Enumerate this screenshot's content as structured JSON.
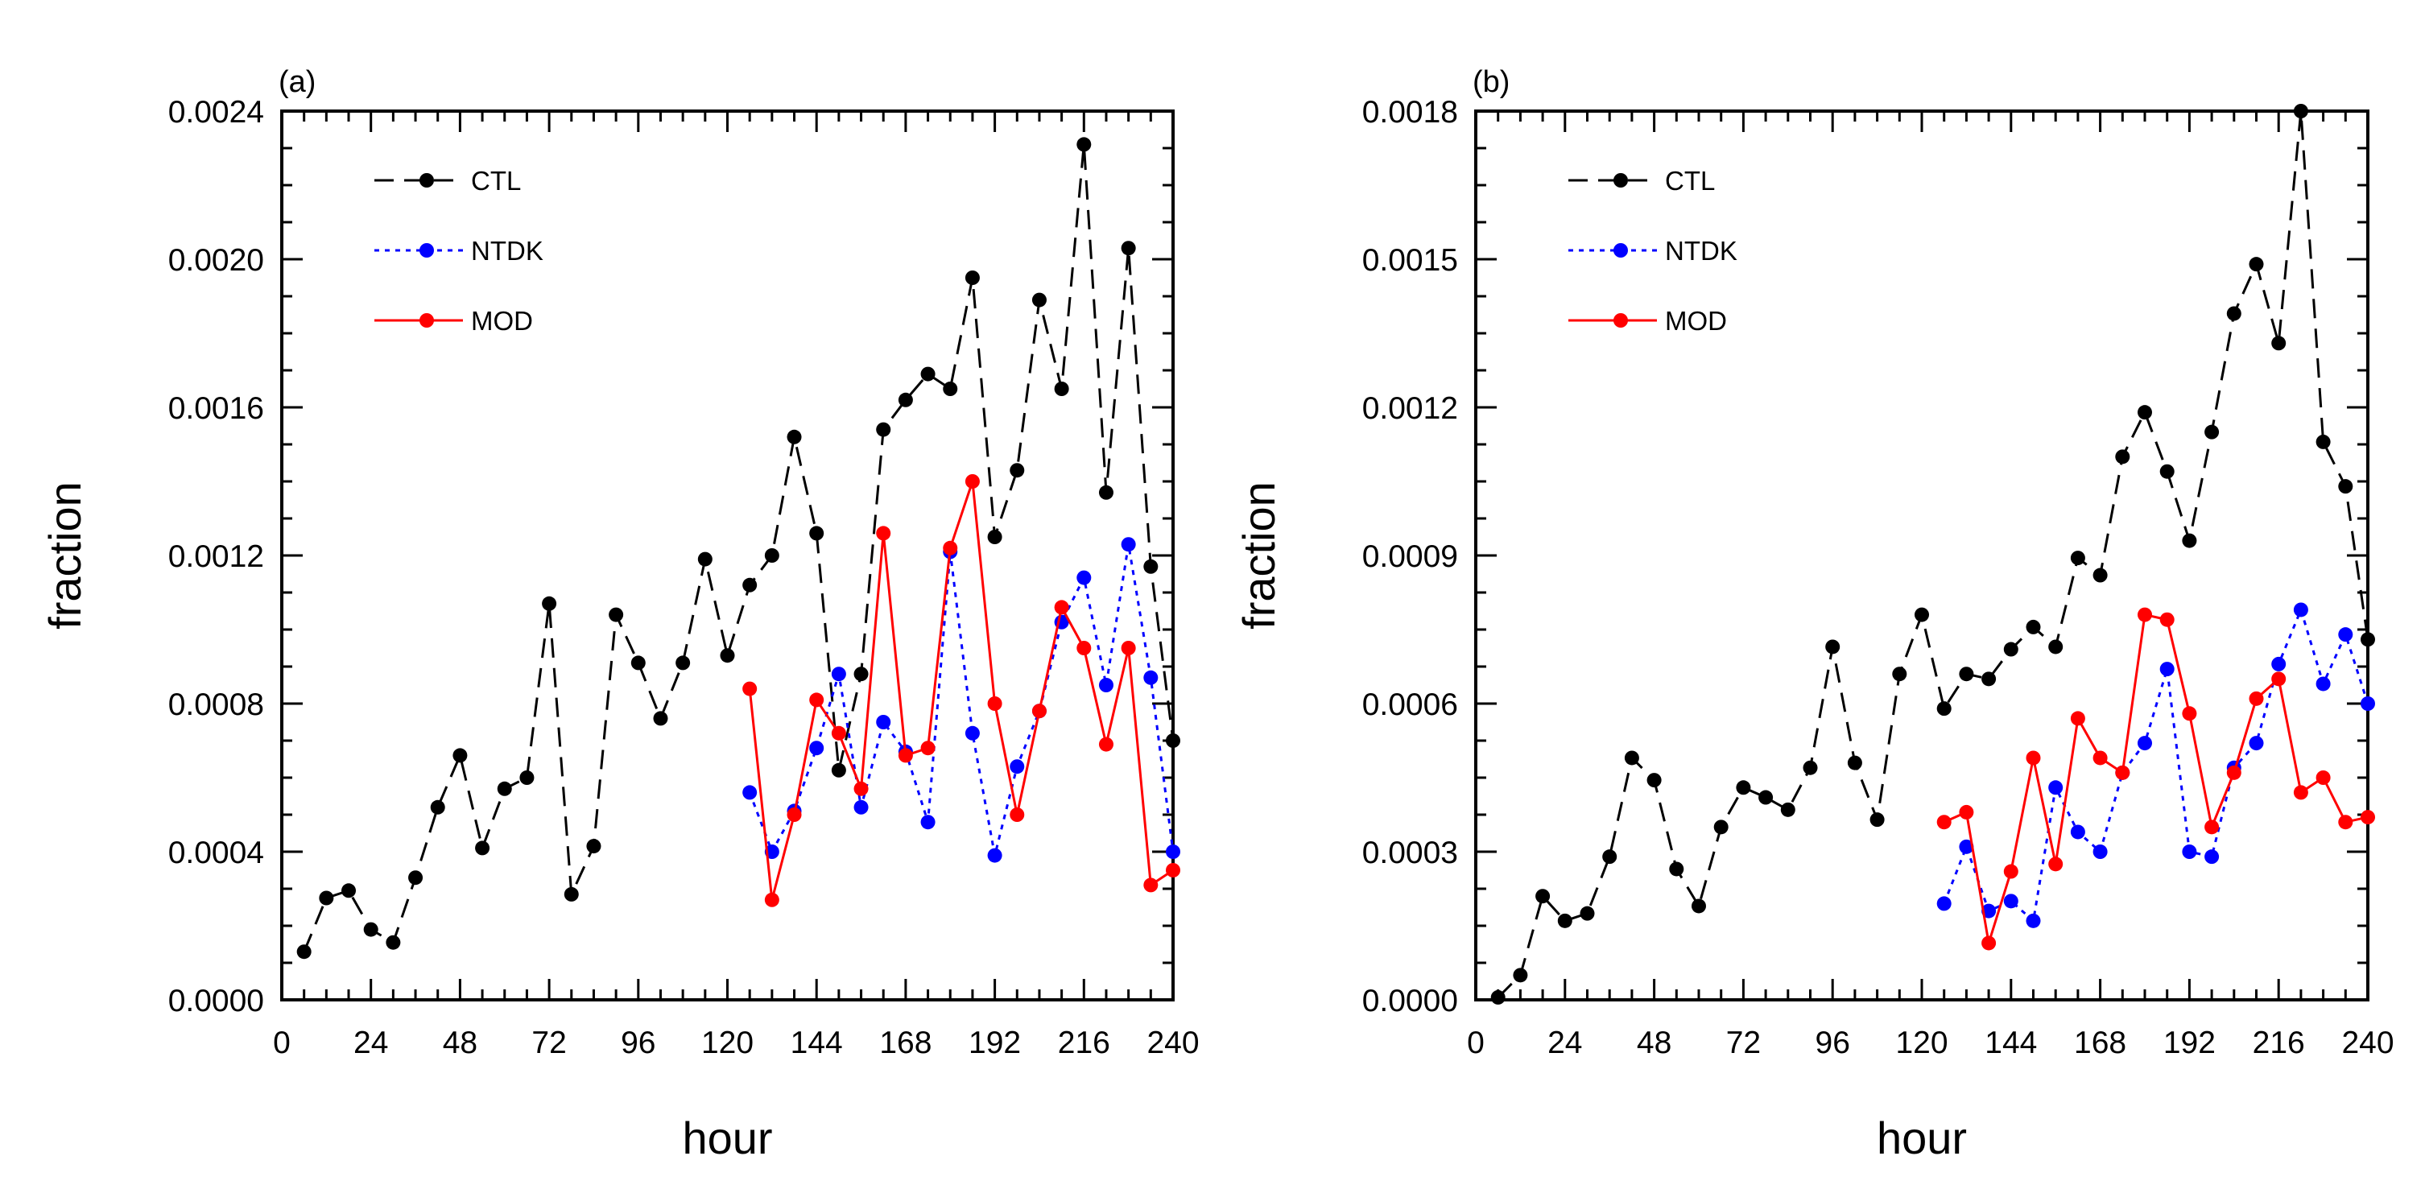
{
  "chart_data": [
    {
      "type": "line",
      "panel_label": "(a)",
      "xlabel": "hour",
      "ylabel": "fraction",
      "xlim": [
        0,
        240
      ],
      "ylim": [
        0,
        0.0024
      ],
      "xticks": [
        0,
        24,
        48,
        72,
        96,
        120,
        144,
        168,
        192,
        216,
        240
      ],
      "xtick_labels": [
        "0",
        "24",
        "48",
        "72",
        "96",
        "120",
        "144",
        "168",
        "192",
        "216",
        "240"
      ],
      "yticks": [
        0,
        0.0004,
        0.0008,
        0.0012,
        0.0016,
        0.002,
        0.0024
      ],
      "ytick_labels": [
        "0.0000",
        "0.0004",
        "0.0008",
        "0.0012",
        "0.0016",
        "0.0020",
        "0.0024"
      ],
      "legend_position": "top-left",
      "series": [
        {
          "name": "CTL",
          "color": "#000000",
          "dash": "dashed",
          "x": [
            6,
            12,
            18,
            24,
            30,
            36,
            42,
            48,
            54,
            60,
            66,
            72,
            78,
            84,
            90,
            96,
            102,
            108,
            114,
            120,
            126,
            132,
            138,
            144,
            150,
            156,
            162,
            168,
            174,
            180,
            186,
            192,
            198,
            204,
            210,
            216,
            222,
            228,
            234,
            240
          ],
          "values": [
            0.00013,
            0.000275,
            0.000295,
            0.00019,
            0.000155,
            0.00033,
            0.00052,
            0.00066,
            0.00041,
            0.00057,
            0.0006,
            0.00107,
            0.000285,
            0.000415,
            0.00104,
            0.00091,
            0.00076,
            0.00091,
            0.00119,
            0.00093,
            0.00112,
            0.0012,
            0.00152,
            0.00126,
            0.00062,
            0.00088,
            0.00154,
            0.00162,
            0.00169,
            0.00165,
            0.00195,
            0.00125,
            0.00143,
            0.00189,
            0.00165,
            0.00231,
            0.00137,
            0.00203,
            0.00117,
            0.0007
          ]
        },
        {
          "name": "NTDK",
          "color": "#0000ff",
          "dash": "dotted",
          "x": [
            126,
            132,
            138,
            144,
            150,
            156,
            162,
            168,
            174,
            180,
            186,
            192,
            198,
            204,
            210,
            216,
            222,
            228,
            234,
            240
          ],
          "values": [
            0.00056,
            0.0004,
            0.00051,
            0.00068,
            0.00088,
            0.00052,
            0.00075,
            0.00067,
            0.00048,
            0.00121,
            0.00072,
            0.00039,
            0.00063,
            0.00078,
            0.00102,
            0.00114,
            0.00085,
            0.00123,
            0.00087,
            0.0004
          ]
        },
        {
          "name": "MOD",
          "color": "#ff0000",
          "dash": "solid",
          "x": [
            126,
            132,
            138,
            144,
            150,
            156,
            162,
            168,
            174,
            180,
            186,
            192,
            198,
            204,
            210,
            216,
            222,
            228,
            234,
            240
          ],
          "values": [
            0.00084,
            0.00027,
            0.0005,
            0.00081,
            0.00072,
            0.00057,
            0.00126,
            0.00066,
            0.00068,
            0.00122,
            0.0014,
            0.0008,
            0.0005,
            0.00078,
            0.00106,
            0.00095,
            0.00069,
            0.00095,
            0.00031,
            0.00035
          ]
        }
      ]
    },
    {
      "type": "line",
      "panel_label": "(b)",
      "xlabel": "hour",
      "ylabel": "fraction",
      "xlim": [
        0,
        240
      ],
      "ylim": [
        0,
        0.0018
      ],
      "xticks": [
        0,
        24,
        48,
        72,
        96,
        120,
        144,
        168,
        192,
        216,
        240
      ],
      "xtick_labels": [
        "0",
        "24",
        "48",
        "72",
        "96",
        "120",
        "144",
        "168",
        "192",
        "216",
        "240"
      ],
      "yticks": [
        0,
        0.0003,
        0.0006,
        0.0009,
        0.0012,
        0.0015,
        0.0018
      ],
      "ytick_labels": [
        "0.0000",
        "0.0003",
        "0.0006",
        "0.0009",
        "0.0012",
        "0.0015",
        "0.0018"
      ],
      "legend_position": "top-left",
      "series": [
        {
          "name": "CTL",
          "color": "#000000",
          "dash": "dashed",
          "x": [
            6,
            12,
            18,
            24,
            30,
            36,
            42,
            48,
            54,
            60,
            66,
            72,
            78,
            84,
            90,
            96,
            102,
            108,
            114,
            120,
            126,
            132,
            138,
            144,
            150,
            156,
            162,
            168,
            174,
            180,
            186,
            192,
            198,
            204,
            210,
            216,
            222,
            228,
            234,
            240
          ],
          "values": [
            5e-06,
            5e-05,
            0.00021,
            0.00016,
            0.000175,
            0.00029,
            0.00049,
            0.000445,
            0.000265,
            0.00019,
            0.00035,
            0.00043,
            0.00041,
            0.000385,
            0.00047,
            0.000715,
            0.00048,
            0.000365,
            0.00066,
            0.00078,
            0.00059,
            0.00066,
            0.00065,
            0.00071,
            0.000755,
            0.000715,
            0.000895,
            0.00086,
            0.0011,
            0.00119,
            0.00107,
            0.00093,
            0.00115,
            0.00139,
            0.00149,
            0.00133,
            0.0018,
            0.00113,
            0.00104,
            0.00073
          ]
        },
        {
          "name": "NTDK",
          "color": "#0000ff",
          "dash": "dotted",
          "x": [
            126,
            132,
            138,
            144,
            150,
            156,
            162,
            168,
            174,
            180,
            186,
            192,
            198,
            204,
            210,
            216,
            222,
            228,
            234,
            240
          ],
          "values": [
            0.000195,
            0.00031,
            0.00018,
            0.0002,
            0.00016,
            0.00043,
            0.00034,
            0.0003,
            0.00046,
            0.00052,
            0.00067,
            0.0003,
            0.00029,
            0.00047,
            0.00052,
            0.00068,
            0.00079,
            0.00064,
            0.00074,
            0.0006
          ]
        },
        {
          "name": "MOD",
          "color": "#ff0000",
          "dash": "solid",
          "x": [
            126,
            132,
            138,
            144,
            150,
            156,
            162,
            168,
            174,
            180,
            186,
            192,
            198,
            204,
            210,
            216,
            222,
            228,
            234,
            240
          ],
          "values": [
            0.00036,
            0.00038,
            0.000115,
            0.00026,
            0.00049,
            0.000275,
            0.00057,
            0.00049,
            0.00046,
            0.00078,
            0.00077,
            0.00058,
            0.00035,
            0.00046,
            0.00061,
            0.00065,
            0.00042,
            0.00045,
            0.00036,
            0.00037
          ]
        }
      ]
    }
  ]
}
